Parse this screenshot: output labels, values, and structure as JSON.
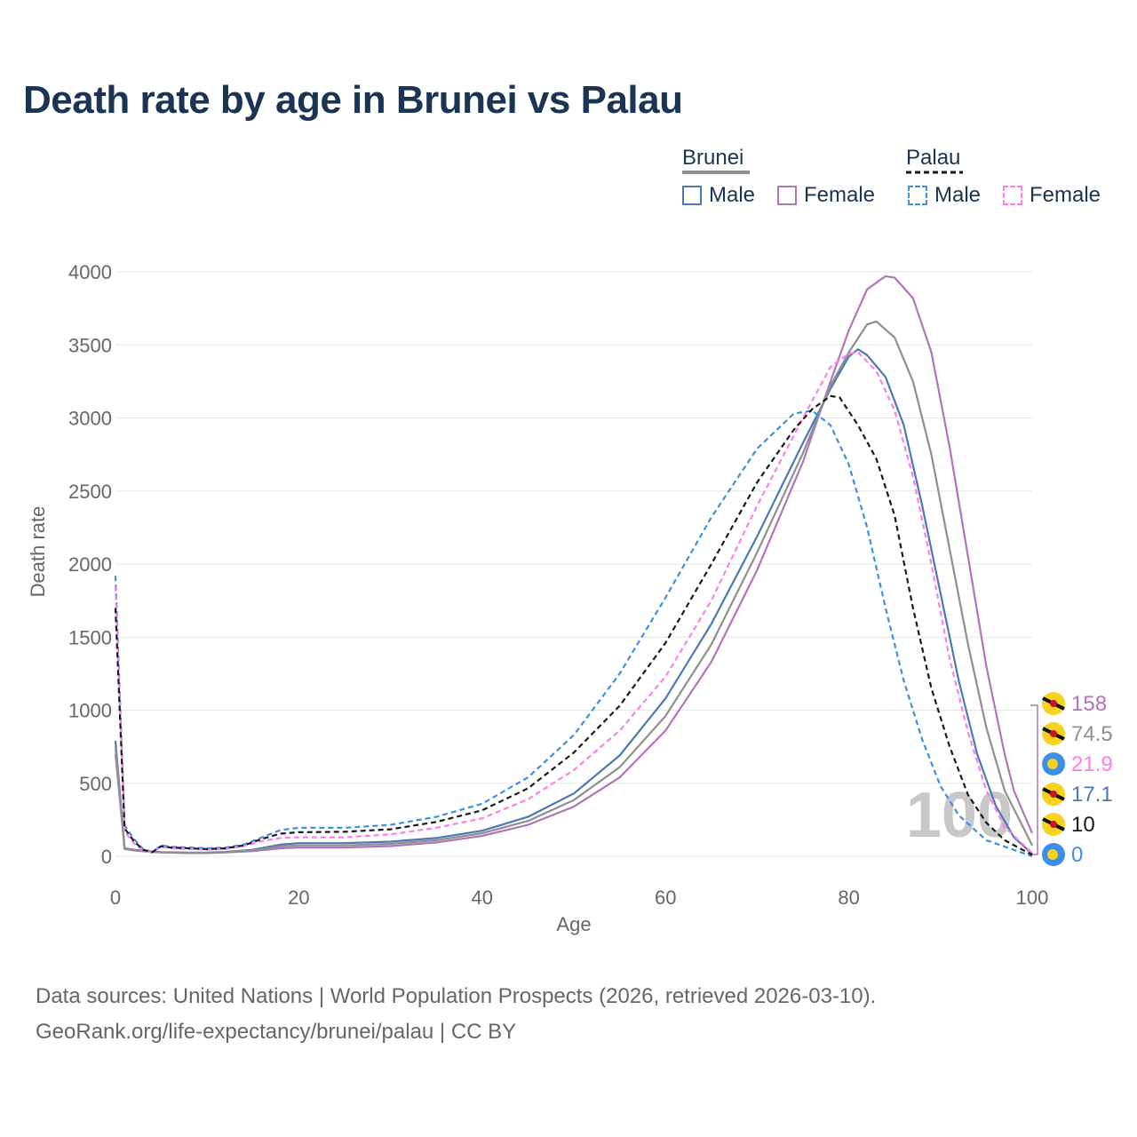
{
  "title": "Death rate by age in Brunei vs Palau",
  "legend": {
    "groups": [
      {
        "name": "Brunei",
        "items": [
          "Male",
          "Female"
        ]
      },
      {
        "name": "Palau",
        "items": [
          "Male",
          "Female"
        ]
      }
    ]
  },
  "colors": {
    "brunei_male": "#4c78b5",
    "brunei_female": "#b274b8",
    "brunei_group": "#8f8f8f",
    "palau_male": "#3d8ee8",
    "palau_female": "#ff7de6",
    "palau_group": "#1a1a1a"
  },
  "chart_data": {
    "type": "line",
    "xlabel": "Age",
    "ylabel": "Death rate",
    "xlim": [
      0,
      100
    ],
    "ylim": [
      0,
      4000
    ],
    "x_ticks": [
      0,
      20,
      40,
      60,
      80,
      100
    ],
    "y_ticks": [
      0,
      500,
      1000,
      1500,
      2000,
      2500,
      3000,
      3500,
      4000
    ],
    "grid": true,
    "watermark": "100",
    "series": [
      {
        "name": "Brunei Male",
        "key": "brunei_male",
        "dash": false,
        "points": [
          [
            0,
            790
          ],
          [
            1,
            55
          ],
          [
            2,
            45
          ],
          [
            4,
            32
          ],
          [
            5,
            28
          ],
          [
            8,
            25
          ],
          [
            10,
            25
          ],
          [
            12,
            30
          ],
          [
            15,
            45
          ],
          [
            18,
            80
          ],
          [
            20,
            90
          ],
          [
            25,
            90
          ],
          [
            30,
            100
          ],
          [
            35,
            125
          ],
          [
            40,
            175
          ],
          [
            45,
            270
          ],
          [
            50,
            430
          ],
          [
            55,
            690
          ],
          [
            60,
            1080
          ],
          [
            65,
            1590
          ],
          [
            70,
            2190
          ],
          [
            75,
            2830
          ],
          [
            78,
            3200
          ],
          [
            80,
            3420
          ],
          [
            81,
            3470
          ],
          [
            82,
            3430
          ],
          [
            84,
            3280
          ],
          [
            86,
            2950
          ],
          [
            88,
            2400
          ],
          [
            90,
            1800
          ],
          [
            92,
            1200
          ],
          [
            94,
            700
          ],
          [
            96,
            350
          ],
          [
            98,
            130
          ],
          [
            100,
            17.1
          ]
        ]
      },
      {
        "name": "Brunei Female",
        "key": "brunei_female",
        "dash": false,
        "points": [
          [
            0,
            700
          ],
          [
            1,
            50
          ],
          [
            2,
            40
          ],
          [
            4,
            30
          ],
          [
            5,
            27
          ],
          [
            8,
            22
          ],
          [
            10,
            22
          ],
          [
            12,
            26
          ],
          [
            15,
            35
          ],
          [
            18,
            55
          ],
          [
            20,
            60
          ],
          [
            25,
            60
          ],
          [
            30,
            70
          ],
          [
            35,
            95
          ],
          [
            40,
            140
          ],
          [
            45,
            215
          ],
          [
            50,
            340
          ],
          [
            55,
            540
          ],
          [
            60,
            860
          ],
          [
            65,
            1330
          ],
          [
            70,
            1960
          ],
          [
            75,
            2700
          ],
          [
            78,
            3250
          ],
          [
            80,
            3600
          ],
          [
            82,
            3880
          ],
          [
            84,
            3970
          ],
          [
            85,
            3960
          ],
          [
            87,
            3820
          ],
          [
            89,
            3450
          ],
          [
            91,
            2800
          ],
          [
            93,
            2050
          ],
          [
            95,
            1300
          ],
          [
            97,
            700
          ],
          [
            98,
            450
          ],
          [
            100,
            158
          ]
        ]
      },
      {
        "name": "Brunei (both sexes)",
        "key": "brunei_group",
        "dash": false,
        "points": [
          [
            0,
            750
          ],
          [
            1,
            52
          ],
          [
            2,
            42
          ],
          [
            4,
            31
          ],
          [
            5,
            27
          ],
          [
            8,
            24
          ],
          [
            10,
            24
          ],
          [
            12,
            28
          ],
          [
            15,
            40
          ],
          [
            18,
            68
          ],
          [
            20,
            75
          ],
          [
            25,
            75
          ],
          [
            30,
            85
          ],
          [
            35,
            110
          ],
          [
            40,
            158
          ],
          [
            45,
            242
          ],
          [
            50,
            385
          ],
          [
            55,
            610
          ],
          [
            60,
            960
          ],
          [
            65,
            1450
          ],
          [
            70,
            2080
          ],
          [
            75,
            2760
          ],
          [
            78,
            3220
          ],
          [
            80,
            3450
          ],
          [
            82,
            3640
          ],
          [
            83,
            3660
          ],
          [
            85,
            3550
          ],
          [
            87,
            3250
          ],
          [
            89,
            2750
          ],
          [
            91,
            2100
          ],
          [
            93,
            1450
          ],
          [
            95,
            880
          ],
          [
            97,
            450
          ],
          [
            99,
            200
          ],
          [
            100,
            74.5
          ]
        ]
      },
      {
        "name": "Palau Male",
        "key": "palau_male",
        "dash": true,
        "points": [
          [
            0,
            1920
          ],
          [
            1,
            210
          ],
          [
            2,
            120
          ],
          [
            3,
            50
          ],
          [
            4,
            30
          ],
          [
            5,
            75
          ],
          [
            6,
            65
          ],
          [
            8,
            60
          ],
          [
            10,
            55
          ],
          [
            12,
            60
          ],
          [
            14,
            80
          ],
          [
            16,
            130
          ],
          [
            18,
            180
          ],
          [
            20,
            195
          ],
          [
            25,
            195
          ],
          [
            30,
            215
          ],
          [
            35,
            270
          ],
          [
            40,
            360
          ],
          [
            45,
            540
          ],
          [
            50,
            830
          ],
          [
            55,
            1250
          ],
          [
            60,
            1770
          ],
          [
            65,
            2320
          ],
          [
            70,
            2790
          ],
          [
            74,
            3030
          ],
          [
            76,
            3050
          ],
          [
            78,
            2950
          ],
          [
            80,
            2680
          ],
          [
            82,
            2250
          ],
          [
            84,
            1700
          ],
          [
            86,
            1200
          ],
          [
            88,
            800
          ],
          [
            90,
            480
          ],
          [
            92,
            280
          ],
          [
            95,
            110
          ],
          [
            100,
            0
          ]
        ]
      },
      {
        "name": "Palau Female",
        "key": "palau_female",
        "dash": true,
        "points": [
          [
            0,
            1850
          ],
          [
            1,
            170
          ],
          [
            2,
            90
          ],
          [
            3,
            40
          ],
          [
            4,
            25
          ],
          [
            5,
            65
          ],
          [
            6,
            55
          ],
          [
            8,
            50
          ],
          [
            10,
            45
          ],
          [
            12,
            50
          ],
          [
            14,
            70
          ],
          [
            16,
            105
          ],
          [
            18,
            125
          ],
          [
            20,
            130
          ],
          [
            25,
            130
          ],
          [
            30,
            150
          ],
          [
            35,
            195
          ],
          [
            40,
            260
          ],
          [
            45,
            390
          ],
          [
            50,
            590
          ],
          [
            55,
            860
          ],
          [
            60,
            1230
          ],
          [
            65,
            1750
          ],
          [
            70,
            2400
          ],
          [
            75,
            3000
          ],
          [
            78,
            3350
          ],
          [
            80,
            3440
          ],
          [
            81,
            3450
          ],
          [
            83,
            3320
          ],
          [
            85,
            3050
          ],
          [
            87,
            2600
          ],
          [
            89,
            2000
          ],
          [
            91,
            1350
          ],
          [
            93,
            850
          ],
          [
            95,
            450
          ],
          [
            97,
            200
          ],
          [
            100,
            21.9
          ]
        ]
      },
      {
        "name": "Palau (both sexes)",
        "key": "palau_group",
        "dash": true,
        "points": [
          [
            0,
            1700
          ],
          [
            1,
            190
          ],
          [
            2,
            105
          ],
          [
            3,
            45
          ],
          [
            4,
            28
          ],
          [
            5,
            70
          ],
          [
            6,
            60
          ],
          [
            8,
            55
          ],
          [
            10,
            50
          ],
          [
            12,
            55
          ],
          [
            14,
            75
          ],
          [
            16,
            120
          ],
          [
            18,
            155
          ],
          [
            20,
            165
          ],
          [
            25,
            168
          ],
          [
            30,
            185
          ],
          [
            35,
            235
          ],
          [
            40,
            315
          ],
          [
            45,
            465
          ],
          [
            50,
            710
          ],
          [
            55,
            1030
          ],
          [
            60,
            1460
          ],
          [
            65,
            2000
          ],
          [
            70,
            2560
          ],
          [
            74,
            2920
          ],
          [
            76,
            3060
          ],
          [
            78,
            3150
          ],
          [
            79,
            3140
          ],
          [
            81,
            2950
          ],
          [
            83,
            2720
          ],
          [
            85,
            2330
          ],
          [
            87,
            1700
          ],
          [
            89,
            1150
          ],
          [
            91,
            750
          ],
          [
            93,
            420
          ],
          [
            95,
            230
          ],
          [
            97,
            110
          ],
          [
            100,
            10
          ]
        ]
      }
    ],
    "end_labels": [
      {
        "value": "158",
        "key": "brunei_female",
        "flag": "brunei"
      },
      {
        "value": "74.5",
        "key": "brunei_group",
        "flag": "brunei"
      },
      {
        "value": "21.9",
        "key": "palau_female",
        "flag": "palau"
      },
      {
        "value": "17.1",
        "key": "brunei_male",
        "flag": "brunei"
      },
      {
        "value": "10",
        "key": "palau_group",
        "flag": "brunei"
      },
      {
        "value": "0",
        "key": "palau_male",
        "flag": "palau"
      }
    ]
  },
  "footer": {
    "line1": "Data sources: United Nations | World Population Prospects (2026, retrieved 2026-03-10).",
    "line2": "GeoRank.org/life-expectancy/brunei/palau | CC BY"
  }
}
